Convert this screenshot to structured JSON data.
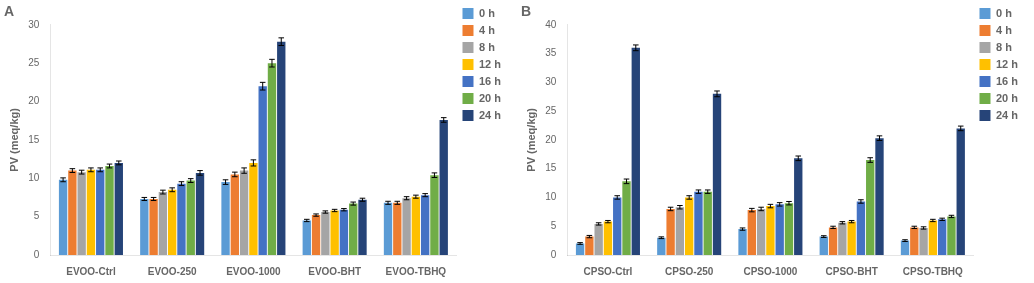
{
  "chart_data": [
    {
      "type": "bar",
      "title": "A",
      "categories": [
        "EVOO-Ctrl",
        "EVOO-250",
        "EVOO-1000",
        "EVOO-BHT",
        "EVOO-TBHQ"
      ],
      "ylabel": "PV (meq/kg)",
      "ylim": [
        0,
        30
      ],
      "yticks": [
        0,
        5,
        10,
        15,
        20,
        25,
        30
      ],
      "grid": false,
      "legend": "right",
      "series": [
        {
          "name": "0 h",
          "color": "#5B9BD5",
          "values": [
            9.8,
            7.3,
            9.5,
            4.5,
            6.8
          ],
          "errors": [
            0.25,
            0.2,
            0.3,
            0.15,
            0.2
          ]
        },
        {
          "name": "4 h",
          "color": "#ED7D31",
          "values": [
            11.0,
            7.3,
            10.5,
            5.2,
            6.8
          ],
          "errors": [
            0.25,
            0.2,
            0.3,
            0.15,
            0.2
          ]
        },
        {
          "name": "8 h",
          "color": "#A5A5A5",
          "values": [
            10.8,
            8.2,
            11.0,
            5.6,
            7.4
          ],
          "errors": [
            0.25,
            0.25,
            0.35,
            0.15,
            0.2
          ]
        },
        {
          "name": "12 h",
          "color": "#FFC000",
          "values": [
            11.1,
            8.5,
            12.0,
            5.8,
            7.6
          ],
          "errors": [
            0.25,
            0.25,
            0.4,
            0.15,
            0.2
          ]
        },
        {
          "name": "16 h",
          "color": "#4472C4",
          "values": [
            11.1,
            9.3,
            22.0,
            5.9,
            7.8
          ],
          "errors": [
            0.25,
            0.25,
            0.5,
            0.15,
            0.2
          ]
        },
        {
          "name": "20 h",
          "color": "#70AD47",
          "values": [
            11.6,
            9.7,
            25.0,
            6.7,
            10.4
          ],
          "errors": [
            0.25,
            0.25,
            0.5,
            0.2,
            0.3
          ]
        },
        {
          "name": "24 h",
          "color": "#264478",
          "values": [
            12.0,
            10.7,
            27.8,
            7.2,
            17.6
          ],
          "errors": [
            0.25,
            0.3,
            0.5,
            0.2,
            0.3
          ]
        }
      ]
    },
    {
      "type": "bar",
      "title": "B",
      "categories": [
        "CPSO-Ctrl",
        "CPSO-250",
        "CPSO-1000",
        "CPSO-BHT",
        "CPSO-TBHQ"
      ],
      "ylabel": "PV (meq/kg)",
      "ylim": [
        0,
        40
      ],
      "yticks": [
        0,
        5,
        10,
        15,
        20,
        25,
        30,
        35,
        40
      ],
      "grid": false,
      "legend": "right",
      "series": [
        {
          "name": "0 h",
          "color": "#5B9BD5",
          "values": [
            2.0,
            3.0,
            4.5,
            3.2,
            2.5
          ],
          "errors": [
            0.15,
            0.15,
            0.2,
            0.15,
            0.15
          ]
        },
        {
          "name": "4 h",
          "color": "#ED7D31",
          "values": [
            3.2,
            8.0,
            7.8,
            4.8,
            4.8
          ],
          "errors": [
            0.2,
            0.3,
            0.3,
            0.2,
            0.2
          ]
        },
        {
          "name": "8 h",
          "color": "#A5A5A5",
          "values": [
            5.4,
            8.3,
            8.0,
            5.6,
            4.7
          ],
          "errors": [
            0.2,
            0.3,
            0.3,
            0.2,
            0.2
          ]
        },
        {
          "name": "12 h",
          "color": "#FFC000",
          "values": [
            5.8,
            10.0,
            8.5,
            5.8,
            6.0
          ],
          "errors": [
            0.2,
            0.3,
            0.3,
            0.2,
            0.2
          ]
        },
        {
          "name": "16 h",
          "color": "#4472C4",
          "values": [
            10.0,
            11.0,
            8.8,
            9.3,
            6.2
          ],
          "errors": [
            0.3,
            0.3,
            0.3,
            0.3,
            0.2
          ]
        },
        {
          "name": "20 h",
          "color": "#70AD47",
          "values": [
            12.8,
            11.0,
            9.0,
            16.5,
            6.7
          ],
          "errors": [
            0.4,
            0.3,
            0.3,
            0.4,
            0.2
          ]
        },
        {
          "name": "24 h",
          "color": "#264478",
          "values": [
            36.0,
            28.0,
            16.8,
            20.3,
            22.0
          ],
          "errors": [
            0.5,
            0.5,
            0.4,
            0.4,
            0.4
          ]
        }
      ]
    }
  ]
}
